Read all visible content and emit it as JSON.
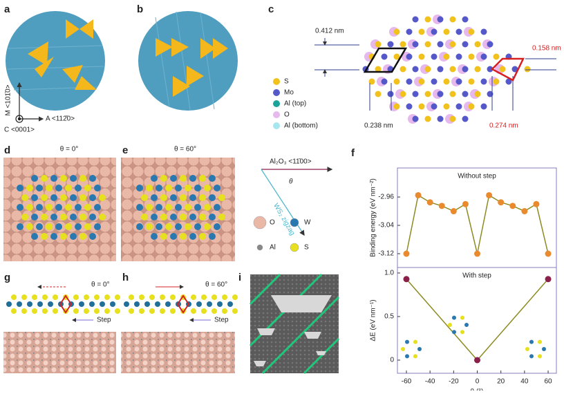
{
  "panel_labels": [
    "a",
    "b",
    "c",
    "d",
    "e",
    "f",
    "g",
    "h",
    "i"
  ],
  "panel_a": {
    "axis_m": "M <101̄0>",
    "axis_a": "A <112̄0>",
    "axis_c": "C <0001>"
  },
  "panel_c": {
    "distances": [
      "0.412 nm",
      "0.158 nm",
      "0.238 nm",
      "0.274 nm"
    ],
    "legend": [
      "S",
      "Mo",
      "Al (top)",
      "O",
      "Al (bottom)"
    ]
  },
  "panel_d": {
    "angle": "θ = 0°"
  },
  "panel_e": {
    "angle": "θ = 60°"
  },
  "panel_de_legend": {
    "substrate_direction": "Al₂O₃ <11̄00>",
    "film_direction": "WS₂ zigzag",
    "theta": "θ",
    "atoms": [
      "O",
      "W",
      "Al",
      "S"
    ]
  },
  "panel_g": {
    "angle": "θ = 0°",
    "step": "Step"
  },
  "panel_h": {
    "angle": "θ = 60°",
    "step": "Step"
  },
  "chart_data": [
    {
      "type": "line",
      "title": "Without step",
      "y_label": "Binding energy (eV nm⁻²)",
      "x": [
        -60,
        -50,
        -40,
        -30,
        -20,
        -10,
        0,
        10,
        20,
        30,
        40,
        50,
        60
      ],
      "values": [
        -3.12,
        -2.955,
        -2.975,
        -2.985,
        -3.0,
        -2.98,
        -3.12,
        -2.955,
        -2.975,
        -2.985,
        -3.0,
        -2.98,
        -3.12
      ],
      "color": "#8c8a1f",
      "marker_color": "#e98a2e",
      "xlim": [
        -67.6,
        67
      ],
      "ylim": [
        -3.159,
        -2.878
      ],
      "yticks": [
        -2.96,
        -3.04,
        -3.12
      ]
    },
    {
      "type": "line",
      "title": "With step",
      "y_label": "ΔE (eV nm⁻¹)",
      "x_label": "θ (°)",
      "x": [
        -60,
        0,
        60
      ],
      "values": [
        0.93,
        0,
        0.93
      ],
      "color": "#8c8a1f",
      "marker_color": "#8a1f4a",
      "xlim": [
        -67.6,
        67
      ],
      "ylim": [
        -0.151,
        1.063
      ],
      "xticks": [
        -60,
        -40,
        -20,
        0,
        20,
        40,
        60
      ],
      "yticks": [
        0,
        0.5,
        {
          "value": 1,
          "label": "1.0"
        }
      ]
    }
  ]
}
